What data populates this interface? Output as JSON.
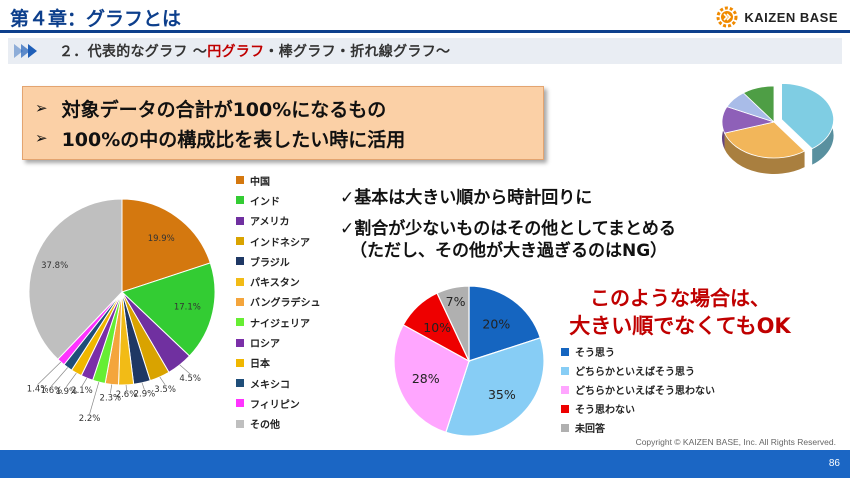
{
  "header": {
    "title": "第４章：グラフとは",
    "logo_text": "KAIZEN BASE"
  },
  "subheading": {
    "prefix": "２．代表的なグラフ 〜",
    "highlight": "円グラフ",
    "suffix": "・棒グラフ・折れ線グラフ〜"
  },
  "callout": {
    "bullet": "➢",
    "lines": [
      "対象データの合計が100%になるもの",
      "100%の中の構成比を表したい時に活用"
    ]
  },
  "tips": [
    "✓基本は大きい順から時計回りに",
    "✓割合が少ないものはその他としてまとめる",
    "（ただし、その他が大き過ぎるのはNG）"
  ],
  "bad_example_note": [
    "このような場合は、",
    "大きい順でなくてもOK"
  ],
  "colors": {
    "brand_blue": "#0d3f8c",
    "accent_red": "#c00000",
    "callout_bg": "#fbd0a6",
    "footer_blue": "#1b66c4"
  },
  "chart_data": [
    {
      "type": "pie",
      "title": "",
      "categories": [
        "中国",
        "インド",
        "アメリカ",
        "インドネシア",
        "ブラジル",
        "パキスタン",
        "バングラデシュ",
        "ナイジェリア",
        "ロシア",
        "日本",
        "メキシコ",
        "フィリピン",
        "その他"
      ],
      "values": [
        19.9,
        17.1,
        4.5,
        3.5,
        2.9,
        2.6,
        2.3,
        2.2,
        2.1,
        1.9,
        1.6,
        1.4,
        37.8
      ],
      "labels": [
        "19.9%",
        "17.1%",
        "4.5%",
        "3.5%",
        "2.9%",
        "2.6%",
        "2.3%",
        "2.2%",
        "2.1%",
        "1.9%",
        "1.6%",
        "1.4%",
        "37.8%"
      ],
      "colors": [
        "#d4780f",
        "#33cc33",
        "#7030a0",
        "#d9a300",
        "#1f3864",
        "#f2bb16",
        "#f4a53c",
        "#66ee33",
        "#7b2fa8",
        "#f0b700",
        "#1f4e79",
        "#ff33ff",
        "#bfbfbf"
      ],
      "legend_position": "right"
    },
    {
      "type": "pie",
      "title": "",
      "categories": [
        "そう思う",
        "どちらかといえばそう思う",
        "どちらかといえばそう思わない",
        "そう思わない",
        "未回答"
      ],
      "values": [
        20,
        35,
        28,
        10,
        7
      ],
      "labels": [
        "20%",
        "35%",
        "28%",
        "10%",
        "7%"
      ],
      "colors": [
        "#1565c0",
        "#87cdf5",
        "#ffa6ff",
        "#ee0000",
        "#b0b0b0"
      ],
      "legend_position": "right"
    },
    {
      "type": "pie",
      "title": "",
      "values": [
        40,
        30,
        12,
        8,
        10
      ],
      "colors": [
        "#7fcde3",
        "#f2b65a",
        "#8e60b8",
        "#a9bce8",
        "#4e9e45"
      ],
      "style": "3d-exploded"
    }
  ],
  "footer": {
    "copyright": "Copyright ©  KAIZEN BASE, Inc.  All Rights Reserved.",
    "page_number": "86"
  }
}
